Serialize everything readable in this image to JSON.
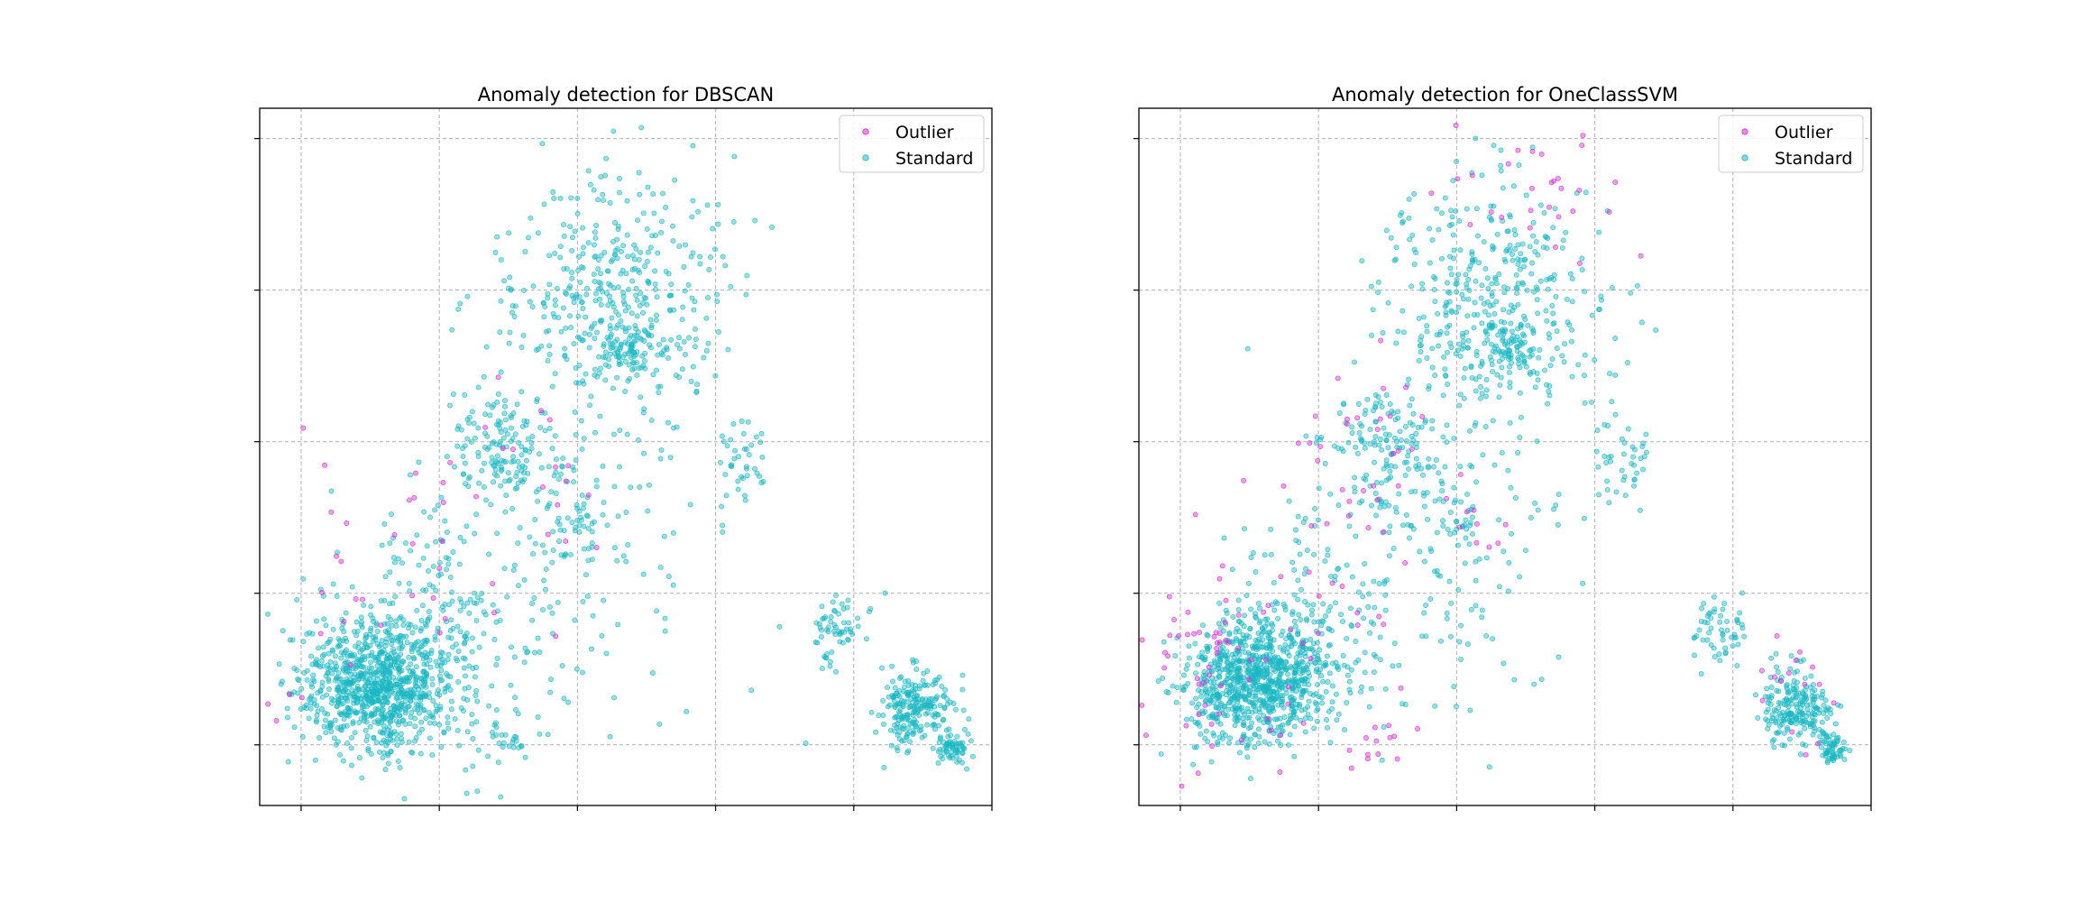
{
  "figure": {
    "background": "#ffffff"
  },
  "colors": {
    "outlier": "#d62cd6",
    "standard": "#1ab8c4",
    "grid": "#b0b0b0",
    "axis": "#000000"
  },
  "chart_data": [
    {
      "type": "scatter",
      "title": "Anomaly detection for DBSCAN",
      "xlabel": "",
      "ylabel": "",
      "xlim": [
        -0.3,
        5.0
      ],
      "ylim": [
        -0.4,
        4.2
      ],
      "xticks": [
        0,
        1,
        2,
        3,
        4,
        5
      ],
      "yticks": [
        0,
        1,
        2,
        3,
        4
      ],
      "tick_labels_visible": false,
      "grid": true,
      "legend_position": "top-right",
      "series": [
        {
          "name": "Outlier",
          "color": "#d62cd6",
          "clusters": [
            {
              "center": [
                0.55,
                1.3
              ],
              "spread": [
                0.35,
                0.35
              ],
              "count": 22,
              "seed": 11
            },
            {
              "center": [
                1.45,
                1.95
              ],
              "spread": [
                0.25,
                0.2
              ],
              "count": 12,
              "seed": 12
            },
            {
              "center": [
                1.2,
                1.05
              ],
              "spread": [
                0.25,
                0.25
              ],
              "count": 8,
              "seed": 13
            },
            {
              "center": [
                2.05,
                1.45
              ],
              "spread": [
                0.12,
                0.15
              ],
              "count": 4,
              "seed": 14
            },
            {
              "center": [
                0.1,
                0.35
              ],
              "spread": [
                0.2,
                0.15
              ],
              "count": 4,
              "seed": 15
            }
          ]
        },
        {
          "name": "Standard",
          "color": "#1ab8c4",
          "clusters": [
            {
              "center": [
                0.55,
                0.4
              ],
              "spread": [
                0.28,
                0.22
              ],
              "count": 900,
              "seed": 21
            },
            {
              "center": [
                0.95,
                0.85
              ],
              "spread": [
                0.3,
                0.35
              ],
              "count": 160,
              "seed": 22
            },
            {
              "center": [
                1.45,
                1.95
              ],
              "spread": [
                0.2,
                0.2
              ],
              "count": 120,
              "seed": 23
            },
            {
              "center": [
                2.25,
                2.95
              ],
              "spread": [
                0.4,
                0.4
              ],
              "count": 420,
              "seed": 24
            },
            {
              "center": [
                2.35,
                2.6
              ],
              "spread": [
                0.1,
                0.08
              ],
              "count": 60,
              "seed": 25
            },
            {
              "center": [
                2.05,
                1.45
              ],
              "spread": [
                0.06,
                0.12
              ],
              "count": 20,
              "seed": 26
            },
            {
              "center": [
                3.2,
                1.85
              ],
              "spread": [
                0.1,
                0.15
              ],
              "count": 40,
              "seed": 27
            },
            {
              "center": [
                3.9,
                0.75
              ],
              "spread": [
                0.12,
                0.12
              ],
              "count": 60,
              "seed": 28
            },
            {
              "center": [
                4.45,
                0.25
              ],
              "spread": [
                0.13,
                0.12
              ],
              "count": 220,
              "seed": 29
            },
            {
              "center": [
                4.72,
                -0.02
              ],
              "spread": [
                0.06,
                0.05
              ],
              "count": 60,
              "seed": 30
            },
            {
              "center": [
                1.5,
                0.0
              ],
              "spread": [
                0.12,
                0.07
              ],
              "count": 25,
              "seed": 31
            },
            {
              "center": [
                1.8,
                1.4
              ],
              "spread": [
                0.5,
                0.6
              ],
              "count": 200,
              "seed": 32
            }
          ]
        }
      ]
    },
    {
      "type": "scatter",
      "title": "Anomaly detection for OneClassSVM",
      "xlabel": "",
      "ylabel": "",
      "xlim": [
        -0.3,
        5.0
      ],
      "ylim": [
        -0.4,
        4.2
      ],
      "xticks": [
        0,
        1,
        2,
        3,
        4,
        5
      ],
      "yticks": [
        0,
        1,
        2,
        3,
        4
      ],
      "tick_labels_visible": false,
      "grid": true,
      "legend_position": "top-right",
      "series": [
        {
          "name": "Outlier",
          "color": "#d62cd6",
          "clusters": [
            {
              "center": [
                0.35,
                0.55
              ],
              "spread": [
                0.38,
                0.38
              ],
              "count": 70,
              "seed": 41
            },
            {
              "center": [
                1.3,
                2.05
              ],
              "spread": [
                0.3,
                0.3
              ],
              "count": 30,
              "seed": 42
            },
            {
              "center": [
                2.55,
                3.6
              ],
              "spread": [
                0.35,
                0.3
              ],
              "count": 30,
              "seed": 43
            },
            {
              "center": [
                1.5,
                0.0
              ],
              "spread": [
                0.15,
                0.08
              ],
              "count": 12,
              "seed": 44
            },
            {
              "center": [
                4.4,
                0.35
              ],
              "spread": [
                0.15,
                0.15
              ],
              "count": 15,
              "seed": 45
            },
            {
              "center": [
                2.15,
                1.4
              ],
              "spread": [
                0.1,
                0.15
              ],
              "count": 8,
              "seed": 46
            },
            {
              "center": [
                1.2,
                1.2
              ],
              "spread": [
                0.3,
                0.3
              ],
              "count": 12,
              "seed": 47
            }
          ]
        },
        {
          "name": "Standard",
          "color": "#1ab8c4",
          "clusters": [
            {
              "center": [
                0.55,
                0.4
              ],
              "spread": [
                0.26,
                0.2
              ],
              "count": 860,
              "seed": 51
            },
            {
              "center": [
                0.95,
                0.85
              ],
              "spread": [
                0.3,
                0.35
              ],
              "count": 150,
              "seed": 52
            },
            {
              "center": [
                1.45,
                1.95
              ],
              "spread": [
                0.2,
                0.2
              ],
              "count": 120,
              "seed": 53
            },
            {
              "center": [
                2.25,
                2.95
              ],
              "spread": [
                0.38,
                0.38
              ],
              "count": 400,
              "seed": 54
            },
            {
              "center": [
                2.35,
                2.6
              ],
              "spread": [
                0.1,
                0.08
              ],
              "count": 60,
              "seed": 55
            },
            {
              "center": [
                2.05,
                1.45
              ],
              "spread": [
                0.06,
                0.12
              ],
              "count": 18,
              "seed": 56
            },
            {
              "center": [
                3.2,
                1.85
              ],
              "spread": [
                0.1,
                0.15
              ],
              "count": 40,
              "seed": 57
            },
            {
              "center": [
                3.9,
                0.75
              ],
              "spread": [
                0.12,
                0.12
              ],
              "count": 55,
              "seed": 58
            },
            {
              "center": [
                4.45,
                0.25
              ],
              "spread": [
                0.13,
                0.12
              ],
              "count": 210,
              "seed": 59
            },
            {
              "center": [
                4.72,
                -0.02
              ],
              "spread": [
                0.06,
                0.05
              ],
              "count": 60,
              "seed": 60
            },
            {
              "center": [
                1.8,
                1.4
              ],
              "spread": [
                0.5,
                0.6
              ],
              "count": 190,
              "seed": 61
            }
          ]
        }
      ]
    }
  ]
}
